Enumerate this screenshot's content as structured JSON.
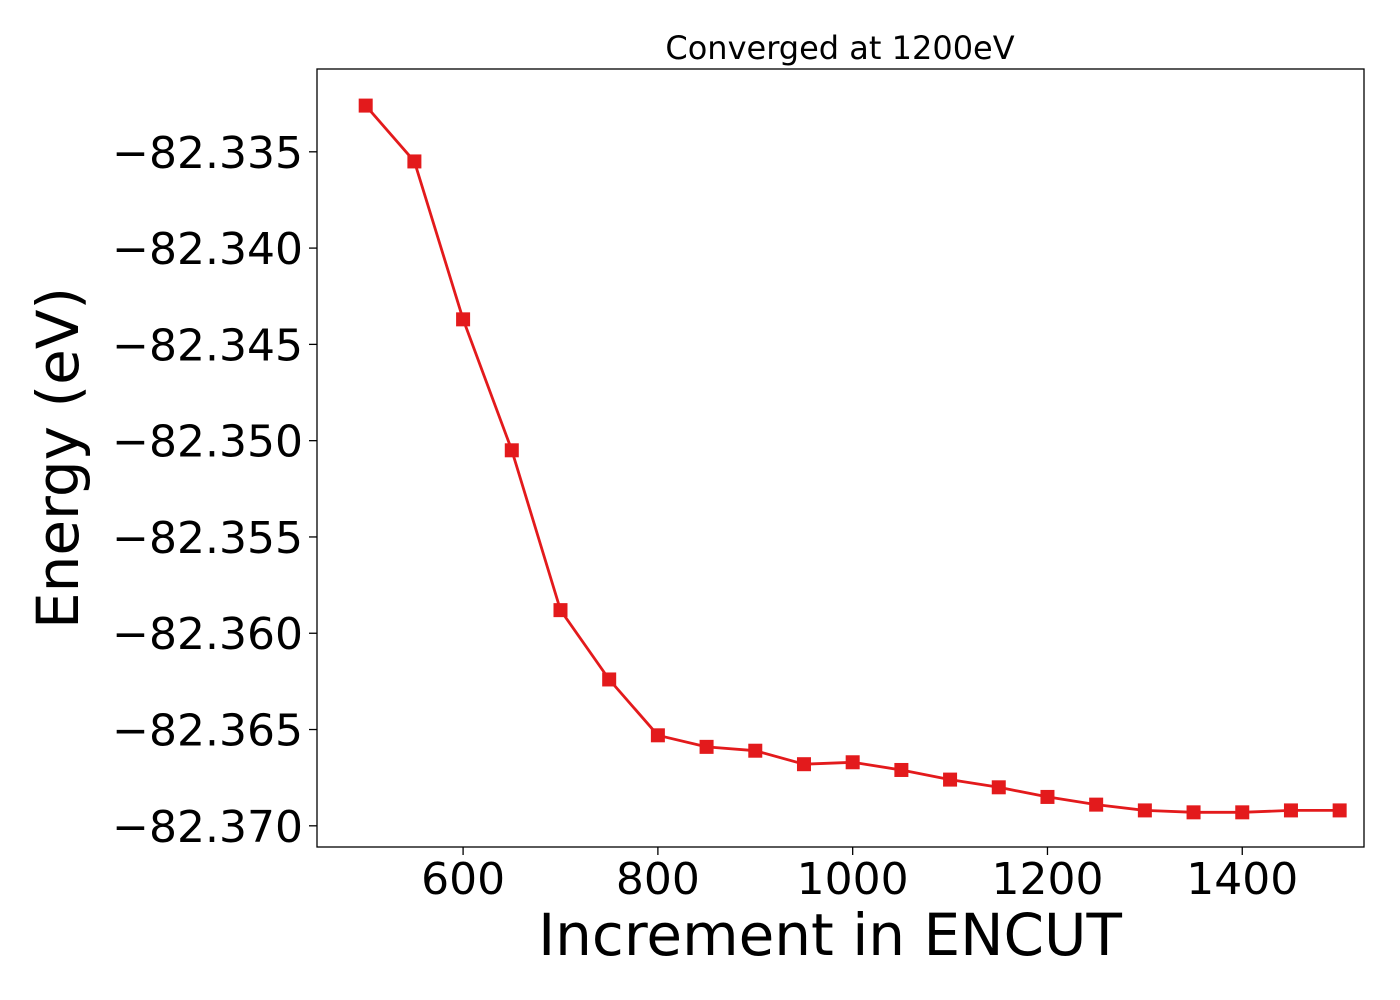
{
  "chart_data": {
    "type": "line",
    "title": "Converged at 1200eV",
    "xlabel": "Increment in ENCUT",
    "ylabel": "Energy (eV)",
    "xlim": [
      450,
      1525
    ],
    "ylim": [
      -82.3711,
      -82.3307
    ],
    "xticks": [
      600,
      800,
      1000,
      1200,
      1400
    ],
    "yticks": [
      -82.335,
      -82.34,
      -82.345,
      -82.35,
      -82.355,
      -82.36,
      -82.365,
      -82.37
    ],
    "ytick_labels": [
      "−82.335",
      "−82.340",
      "−82.345",
      "−82.350",
      "−82.355",
      "−82.360",
      "−82.365",
      "−82.370"
    ],
    "grid": false,
    "legend": "none",
    "series": [
      {
        "color": "#e31a1c",
        "marker": "square",
        "x": [
          500,
          550,
          600,
          650,
          700,
          750,
          800,
          850,
          900,
          950,
          1000,
          1050,
          1100,
          1150,
          1200,
          1250,
          1300,
          1350,
          1400,
          1450,
          1500
        ],
        "y": [
          -82.3326,
          -82.3355,
          -82.3437,
          -82.3505,
          -82.3588,
          -82.3624,
          -82.3653,
          -82.3659,
          -82.3661,
          -82.3668,
          -82.3667,
          -82.3671,
          -82.3676,
          -82.368,
          -82.3685,
          -82.3689,
          -82.3692,
          -82.3693,
          -82.3693,
          -82.3692,
          -82.3692
        ]
      }
    ]
  }
}
